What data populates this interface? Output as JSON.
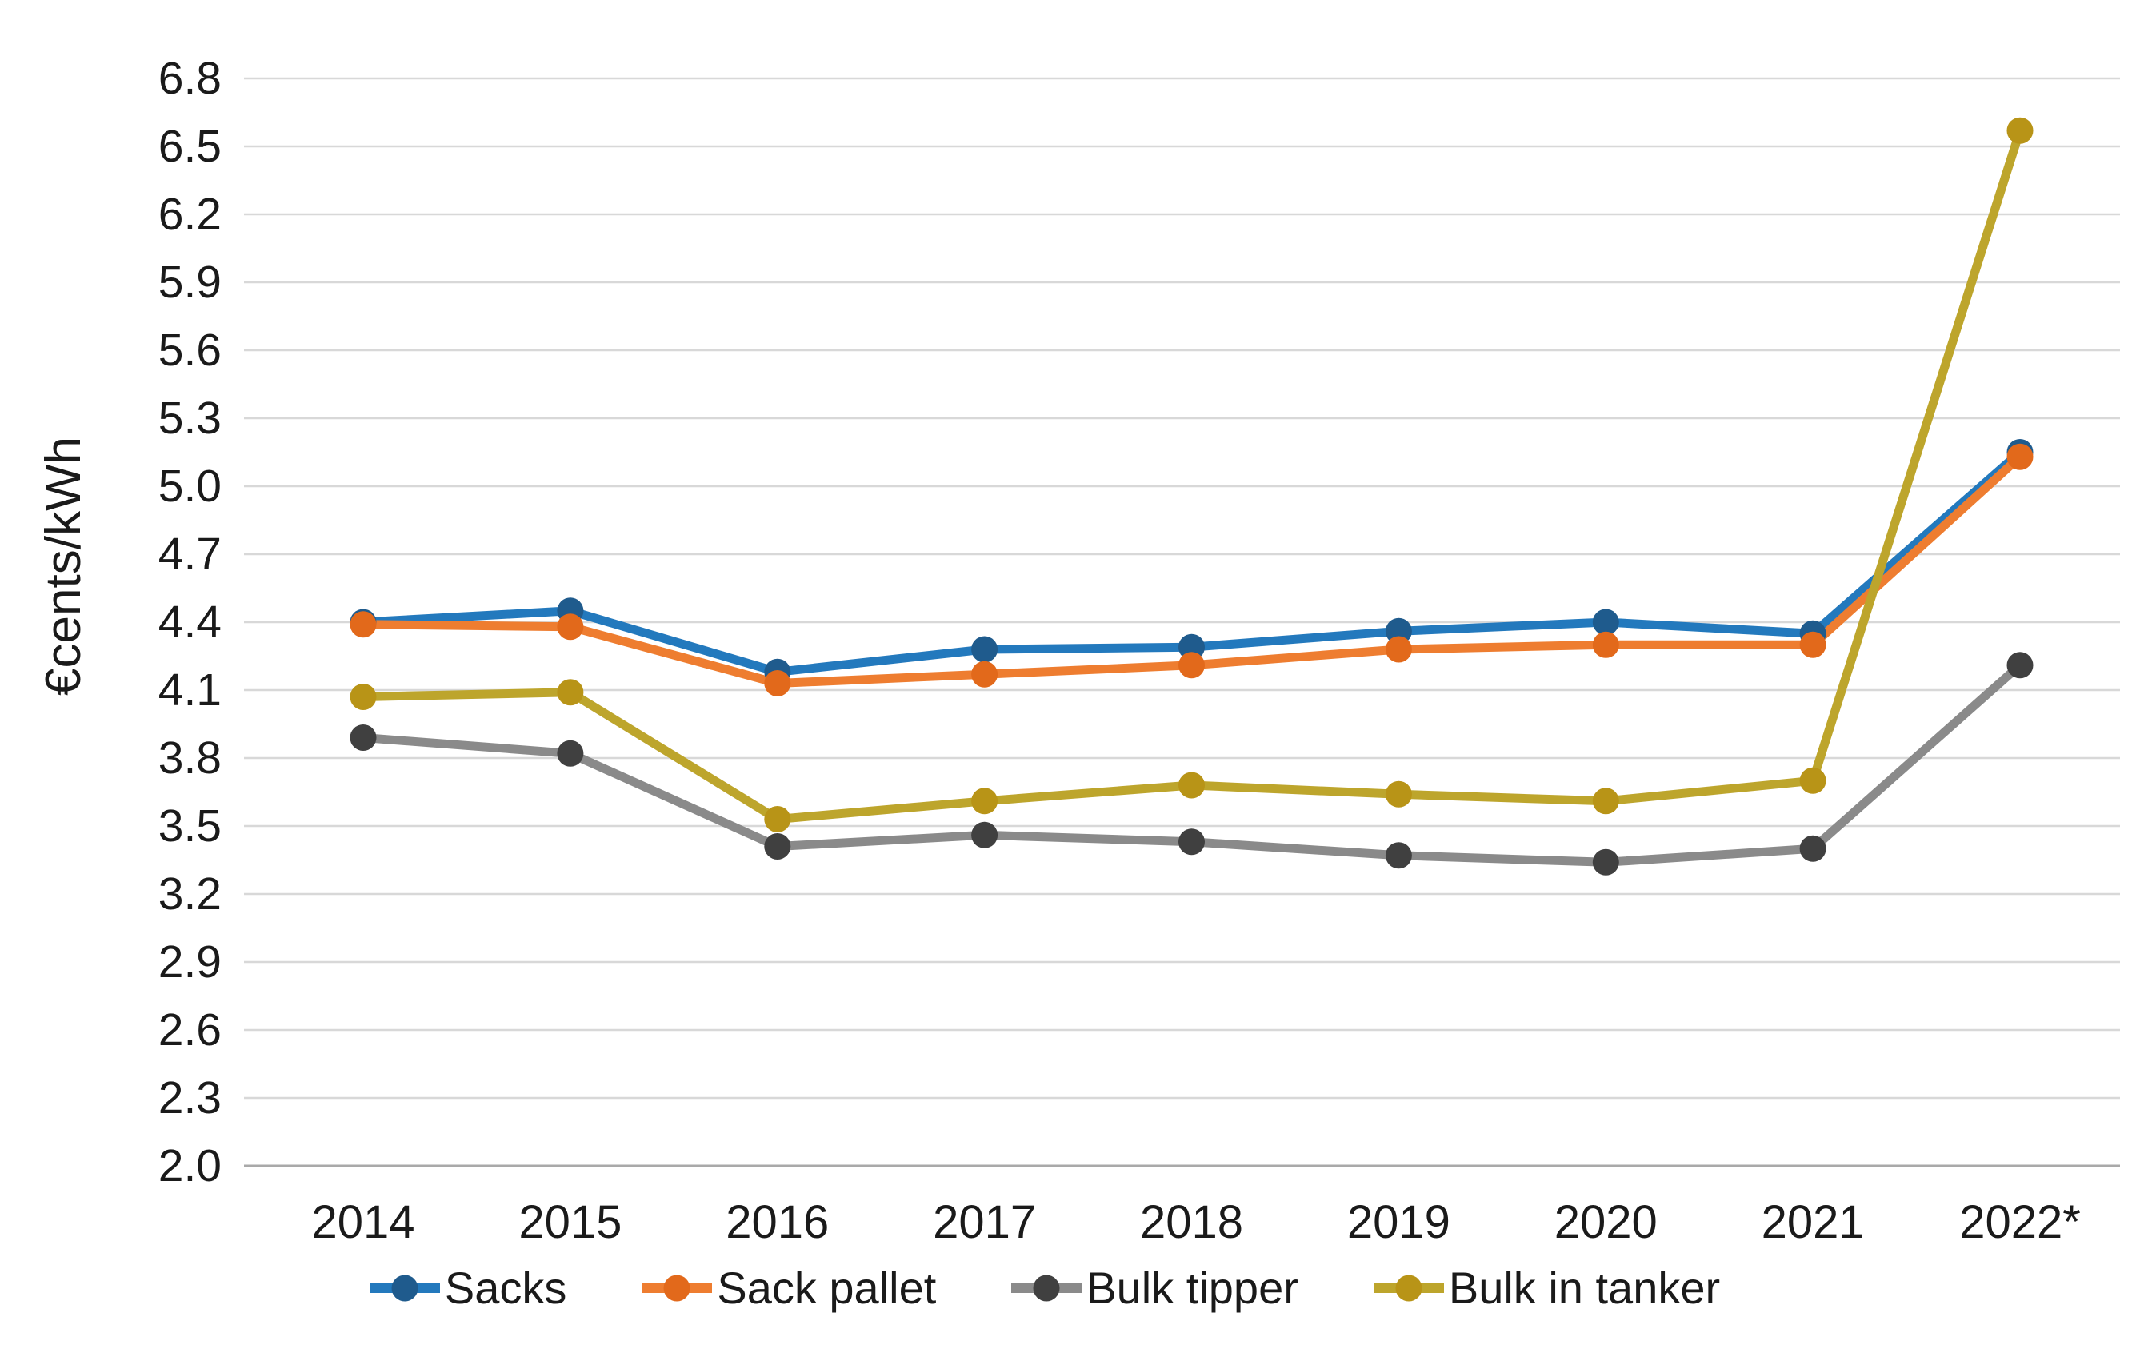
{
  "chart_data": {
    "type": "line",
    "title": "",
    "ylabel": "€cents/kWh",
    "xlabel": "",
    "categories": [
      "2014",
      "2015",
      "2016",
      "2017",
      "2018",
      "2019",
      "2020",
      "2021",
      "2022*"
    ],
    "series": [
      {
        "name": "Sacks",
        "color": "#2379BD",
        "marker_color": "#1F5B8D",
        "values": [
          4.4,
          4.45,
          4.18,
          4.28,
          4.29,
          4.36,
          4.4,
          4.35,
          5.15
        ]
      },
      {
        "name": "Sack pallet",
        "color": "#EE7D30",
        "marker_color": "#E2691B",
        "values": [
          4.39,
          4.38,
          4.13,
          4.17,
          4.21,
          4.28,
          4.3,
          4.3,
          5.13
        ]
      },
      {
        "name": "Bulk tipper",
        "color": "#8A8A8A",
        "marker_color": "#404040",
        "values": [
          3.89,
          3.82,
          3.41,
          3.46,
          3.43,
          3.37,
          3.34,
          3.4,
          4.21
        ]
      },
      {
        "name": "Bulk in tanker",
        "color": "#BDA52C",
        "marker_color": "#B89417",
        "values": [
          4.07,
          4.09,
          3.53,
          3.61,
          3.68,
          3.64,
          3.61,
          3.7,
          6.57
        ]
      }
    ],
    "y_axis": {
      "min": 2.0,
      "max": 6.8,
      "step": 0.3,
      "tick_decimals": 1
    },
    "layout": {
      "grid": true,
      "gridline_color": "#D8D8D8",
      "axis_line_color": "#A9A9A9",
      "background": "#FFFFFF",
      "legend_position": "bottom"
    }
  }
}
